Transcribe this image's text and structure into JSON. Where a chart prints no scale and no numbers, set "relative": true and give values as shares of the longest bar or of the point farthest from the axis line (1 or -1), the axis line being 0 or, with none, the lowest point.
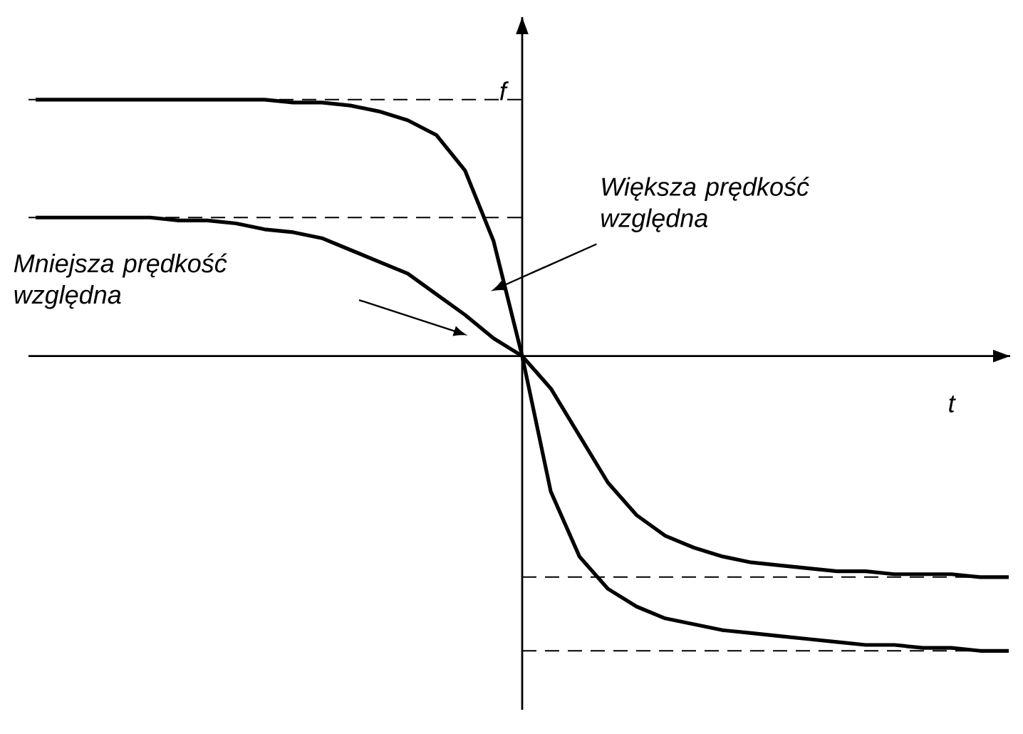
{
  "chart_data": {
    "type": "line",
    "relative": true,
    "xlabel": "t",
    "ylabel": "f",
    "categories": [
      null,
      null,
      null,
      null,
      null,
      null,
      null,
      null,
      null,
      null,
      null,
      null,
      null,
      null,
      null,
      null,
      null,
      null,
      null,
      null,
      null,
      null,
      null,
      null,
      null,
      null,
      null,
      null,
      null,
      null,
      null,
      null,
      null,
      null,
      null
    ],
    "series": [
      {
        "color": "#000000",
        "values": [
          0.87,
          0.87,
          0.87,
          0.87,
          0.87,
          0.87,
          0.87,
          0.87,
          0.87,
          0.86,
          0.86,
          0.85,
          0.83,
          0.8,
          0.75,
          0.63,
          0.39,
          0,
          -0.46,
          -0.68,
          -0.79,
          -0.85,
          -0.89,
          -0.91,
          -0.93,
          -0.94,
          -0.95,
          -0.96,
          -0.97,
          -0.98,
          -0.98,
          -0.99,
          -0.99,
          -1,
          -1
        ]
      },
      {
        "color": "#000000",
        "values": [
          0.47,
          0.47,
          0.47,
          0.47,
          0.47,
          0.46,
          0.46,
          0.45,
          0.43,
          0.42,
          0.4,
          0.36,
          0.32,
          0.28,
          0.21,
          0.14,
          0.06,
          0,
          -0.11,
          -0.27,
          -0.43,
          -0.54,
          -0.61,
          -0.65,
          -0.68,
          -0.7,
          -0.71,
          -0.72,
          -0.73,
          -0.73,
          -0.74,
          -0.74,
          -0.74,
          -0.75,
          -0.75
        ]
      }
    ],
    "ref_lines": [
      {
        "axis": "y",
        "value": 0.87,
        "color": "#000000",
        "line_style": "dashed"
      },
      {
        "axis": "y",
        "value": 0.47,
        "color": "#000000",
        "line_style": "dashed"
      },
      {
        "axis": "y",
        "value": -0.75,
        "color": "#000000",
        "line_style": "dashed"
      },
      {
        "axis": "y",
        "value": -1,
        "color": "#000000",
        "line_style": "dashed"
      }
    ],
    "annotations": [
      "Większa prędkość względna",
      "Mniejsza prędkość względna"
    ],
    "marker": "none",
    "line_style": "solid"
  }
}
